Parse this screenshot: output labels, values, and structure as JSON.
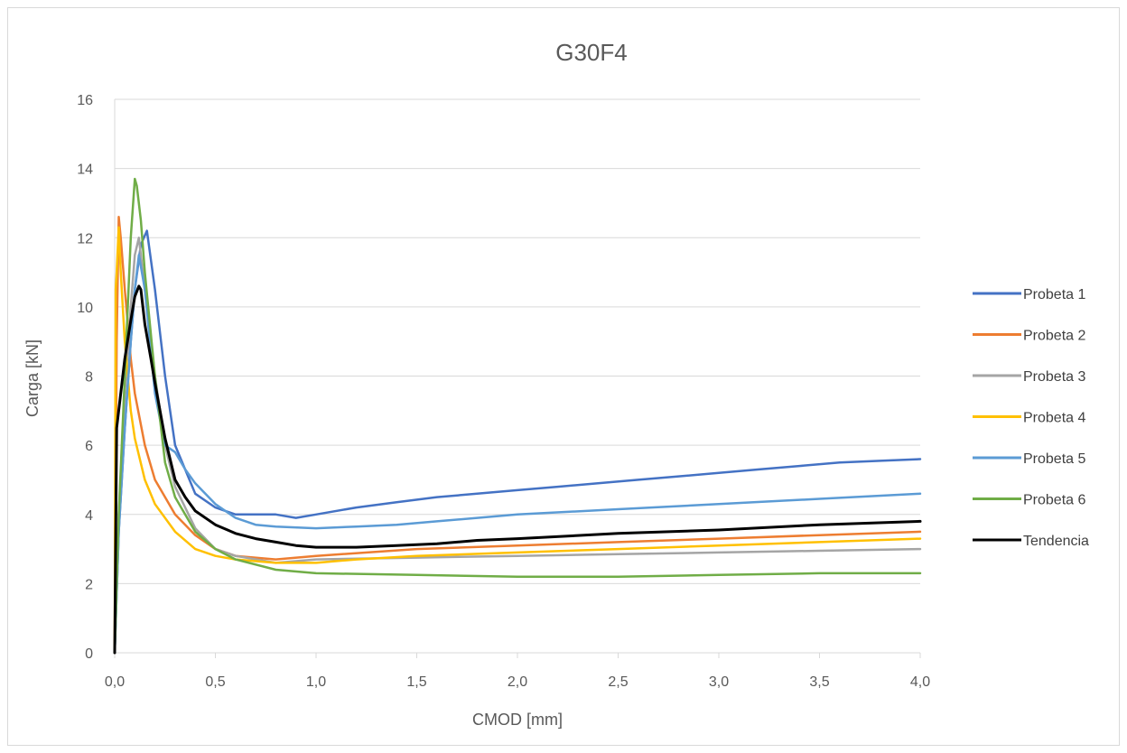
{
  "chart_data": {
    "type": "line",
    "title": "G30F4",
    "xlabel": "CMOD [mm]",
    "ylabel": "Carga [kN]",
    "xlim": [
      0,
      4
    ],
    "ylim": [
      0,
      16
    ],
    "x_ticks": [
      "0,0",
      "0,5",
      "1,0",
      "1,5",
      "2,0",
      "2,5",
      "3,0",
      "3,5",
      "4,0"
    ],
    "y_ticks": [
      "0",
      "2",
      "4",
      "6",
      "8",
      "10",
      "12",
      "14",
      "16"
    ],
    "grid": "horizontal",
    "legend": "right",
    "series": [
      {
        "name": "Probeta 1",
        "color": "#4472C4",
        "x": [
          0,
          0.02,
          0.05,
          0.08,
          0.1,
          0.13,
          0.16,
          0.2,
          0.25,
          0.3,
          0.4,
          0.5,
          0.6,
          0.7,
          0.8,
          0.9,
          1.0,
          1.2,
          1.4,
          1.6,
          1.8,
          2.0,
          2.2,
          2.4,
          2.6,
          2.8,
          3.0,
          3.2,
          3.4,
          3.6,
          3.8,
          4.0
        ],
        "y": [
          0,
          3.5,
          6.5,
          9.0,
          10.5,
          11.8,
          12.2,
          10.5,
          8.0,
          6.0,
          4.6,
          4.2,
          4.0,
          4.0,
          4.0,
          3.9,
          4.0,
          4.2,
          4.35,
          4.5,
          4.6,
          4.7,
          4.8,
          4.9,
          5.0,
          5.1,
          5.2,
          5.3,
          5.4,
          5.5,
          5.55,
          5.6
        ]
      },
      {
        "name": "Probeta 2",
        "color": "#ED7D31",
        "x": [
          0,
          0.01,
          0.02,
          0.03,
          0.05,
          0.08,
          0.1,
          0.15,
          0.2,
          0.25,
          0.3,
          0.4,
          0.5,
          0.6,
          0.8,
          1.0,
          1.5,
          2.0,
          2.5,
          3.0,
          3.5,
          4.0
        ],
        "y": [
          0,
          9.0,
          12.6,
          12.0,
          10.5,
          8.5,
          7.5,
          6.0,
          5.0,
          4.5,
          4.0,
          3.4,
          3.0,
          2.8,
          2.7,
          2.8,
          3.0,
          3.1,
          3.2,
          3.3,
          3.4,
          3.5
        ]
      },
      {
        "name": "Probeta 3",
        "color": "#A5A5A5",
        "x": [
          0,
          0.02,
          0.05,
          0.08,
          0.1,
          0.12,
          0.15,
          0.2,
          0.25,
          0.3,
          0.4,
          0.5,
          0.6,
          0.8,
          1.0,
          1.5,
          2.0,
          2.5,
          3.0,
          3.5,
          4.0
        ],
        "y": [
          0,
          4.0,
          7.5,
          10.0,
          11.5,
          12.0,
          10.5,
          8.0,
          6.0,
          4.8,
          3.6,
          3.0,
          2.8,
          2.6,
          2.7,
          2.75,
          2.8,
          2.85,
          2.9,
          2.95,
          3.0
        ]
      },
      {
        "name": "Probeta 4",
        "color": "#FFC000",
        "x": [
          0,
          0.005,
          0.01,
          0.02,
          0.03,
          0.05,
          0.08,
          0.1,
          0.15,
          0.2,
          0.3,
          0.4,
          0.5,
          0.6,
          0.8,
          1.0,
          1.2,
          1.5,
          2.0,
          2.5,
          3.0,
          3.5,
          4.0
        ],
        "y": [
          0,
          10.5,
          11.0,
          12.3,
          11.0,
          9.0,
          7.0,
          6.2,
          5.0,
          4.3,
          3.5,
          3.0,
          2.8,
          2.7,
          2.6,
          2.6,
          2.7,
          2.8,
          2.9,
          3.0,
          3.1,
          3.2,
          3.3
        ]
      },
      {
        "name": "Probeta 5",
        "color": "#5B9BD5",
        "x": [
          0,
          0.02,
          0.05,
          0.08,
          0.1,
          0.12,
          0.15,
          0.2,
          0.25,
          0.3,
          0.35,
          0.4,
          0.5,
          0.6,
          0.7,
          0.8,
          1.0,
          1.2,
          1.4,
          1.6,
          1.8,
          2.0,
          2.5,
          3.0,
          3.5,
          4.0
        ],
        "y": [
          0,
          3.5,
          6.5,
          9.0,
          10.5,
          11.5,
          10.5,
          7.5,
          6.0,
          5.8,
          5.3,
          4.9,
          4.3,
          3.9,
          3.7,
          3.65,
          3.6,
          3.65,
          3.7,
          3.8,
          3.9,
          4.0,
          4.15,
          4.3,
          4.45,
          4.6
        ]
      },
      {
        "name": "Probeta 6",
        "color": "#70AD47",
        "x": [
          0,
          0.02,
          0.05,
          0.08,
          0.1,
          0.11,
          0.13,
          0.15,
          0.2,
          0.25,
          0.3,
          0.4,
          0.5,
          0.6,
          0.8,
          1.0,
          1.5,
          2.0,
          2.5,
          3.0,
          3.5,
          4.0
        ],
        "y": [
          0,
          4.0,
          8.0,
          12.0,
          13.7,
          13.5,
          12.5,
          11.0,
          8.0,
          5.5,
          4.5,
          3.5,
          3.0,
          2.7,
          2.4,
          2.3,
          2.25,
          2.2,
          2.2,
          2.25,
          2.3,
          2.3
        ]
      },
      {
        "name": "Tendencia",
        "color": "#000000",
        "x": [
          0,
          0.01,
          0.03,
          0.05,
          0.08,
          0.1,
          0.12,
          0.13,
          0.15,
          0.18,
          0.2,
          0.25,
          0.3,
          0.35,
          0.4,
          0.5,
          0.6,
          0.7,
          0.8,
          0.9,
          1.0,
          1.2,
          1.4,
          1.6,
          1.8,
          2.0,
          2.5,
          3.0,
          3.5,
          4.0
        ],
        "y": [
          0,
          6.5,
          7.5,
          8.5,
          9.6,
          10.3,
          10.6,
          10.5,
          9.5,
          8.5,
          7.8,
          6.2,
          5.0,
          4.5,
          4.1,
          3.7,
          3.45,
          3.3,
          3.2,
          3.1,
          3.05,
          3.05,
          3.1,
          3.15,
          3.25,
          3.3,
          3.45,
          3.55,
          3.7,
          3.8
        ]
      }
    ]
  }
}
